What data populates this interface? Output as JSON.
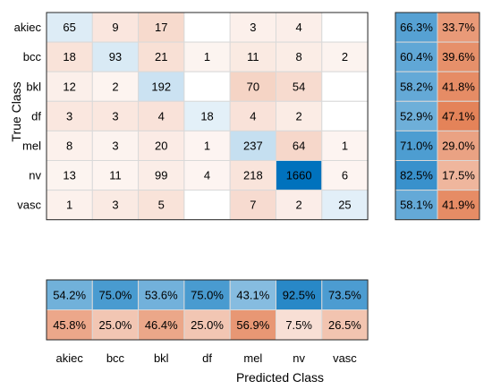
{
  "chart_data": {
    "type": "heatmap",
    "classes": [
      "akiec",
      "bcc",
      "bkl",
      "df",
      "mel",
      "nv",
      "vasc"
    ],
    "xlabel": "Predicted Class",
    "ylabel": "True Class",
    "matrix": [
      [
        65,
        9,
        17,
        null,
        3,
        4,
        null
      ],
      [
        18,
        93,
        21,
        1,
        11,
        8,
        2
      ],
      [
        12,
        2,
        192,
        null,
        70,
        54,
        null
      ],
      [
        3,
        3,
        4,
        18,
        4,
        2,
        null
      ],
      [
        8,
        3,
        20,
        1,
        237,
        64,
        1
      ],
      [
        13,
        11,
        99,
        4,
        218,
        1660,
        6
      ],
      [
        1,
        3,
        5,
        null,
        7,
        2,
        25
      ]
    ],
    "row_summary": {
      "correct": [
        "66.3%",
        "60.4%",
        "58.2%",
        "52.9%",
        "71.0%",
        "82.5%",
        "58.1%"
      ],
      "incorrect": [
        "33.7%",
        "39.6%",
        "41.8%",
        "47.1%",
        "29.0%",
        "17.5%",
        "41.9%"
      ]
    },
    "column_summary": {
      "correct": [
        "54.2%",
        "75.0%",
        "53.6%",
        "75.0%",
        "43.1%",
        "92.5%",
        "73.5%"
      ],
      "incorrect": [
        "45.8%",
        "25.0%",
        "46.4%",
        "25.0%",
        "56.9%",
        "7.5%",
        "26.5%"
      ]
    },
    "colors": {
      "diagonal": "#0072BD",
      "off_diagonal": "#D95319",
      "correct_summary": "#0072BD",
      "incorrect_summary": "#D95319",
      "grid": "#d9d9d9",
      "border": "#262626"
    }
  }
}
